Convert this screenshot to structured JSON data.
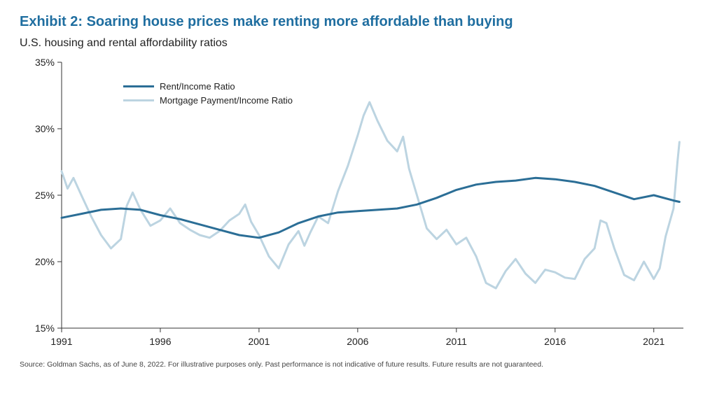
{
  "title": "Exhibit 2: Soaring house prices make renting more affordable than buying",
  "subtitle": "U.S. housing and rental affordability ratios",
  "source": "Source: Goldman Sachs, as of June 8, 2022. For illustrative purposes only. Past performance is not indicative of future results. Future results are not guaranteed.",
  "chart": {
    "type": "line",
    "background_color": "#ffffff",
    "title_color": "#1f6ea0",
    "title_fontsize": 20,
    "subtitle_fontsize": 16,
    "axis_color": "#333333",
    "axis_line_width": 1,
    "tick_fontsize": 14,
    "tick_color": "#222222",
    "grid": false,
    "xlim": [
      1991,
      2022.5
    ],
    "ylim": [
      15,
      35
    ],
    "ytick_step": 5,
    "yticks": [
      15,
      20,
      25,
      30,
      35
    ],
    "ytick_labels": [
      "15%",
      "20%",
      "25%",
      "30%",
      "35%"
    ],
    "xticks": [
      1991,
      1996,
      2001,
      2006,
      2011,
      2016,
      2021
    ],
    "xtick_labels": [
      "1991",
      "1996",
      "2001",
      "2006",
      "2011",
      "2016",
      "2021"
    ],
    "legend": {
      "position": "upper-left-inside",
      "fontsize": 13,
      "items": [
        {
          "label": "Rent/Income Ratio",
          "color": "#2b6e96",
          "line_width": 3
        },
        {
          "label": "Mortgage Payment/Income Ratio",
          "color": "#bcd4e1",
          "line_width": 3
        }
      ]
    },
    "series": [
      {
        "name": "Rent/Income Ratio",
        "color": "#2b6e96",
        "line_width": 3,
        "x": [
          1991,
          1992,
          1993,
          1994,
          1995,
          1996,
          1997,
          1998,
          1999,
          2000,
          2001,
          2002,
          2003,
          2004,
          2005,
          2006,
          2007,
          2008,
          2009,
          2010,
          2011,
          2012,
          2013,
          2014,
          2015,
          2016,
          2017,
          2018,
          2019,
          2020,
          2021,
          2022,
          2022.3
        ],
        "y": [
          23.3,
          23.6,
          23.9,
          24.0,
          23.9,
          23.5,
          23.2,
          22.8,
          22.4,
          22.0,
          21.8,
          22.2,
          22.9,
          23.4,
          23.7,
          23.8,
          23.9,
          24.0,
          24.3,
          24.8,
          25.4,
          25.8,
          26.0,
          26.1,
          26.3,
          26.2,
          26.0,
          25.7,
          25.2,
          24.7,
          25.0,
          24.6,
          24.5
        ]
      },
      {
        "name": "Mortgage Payment/Income Ratio",
        "color": "#bcd4e1",
        "line_width": 3,
        "x": [
          1991,
          1991.3,
          1991.6,
          1992,
          1992.5,
          1993,
          1993.5,
          1994,
          1994.3,
          1994.6,
          1995,
          1995.5,
          1996,
          1996.5,
          1997,
          1997.5,
          1998,
          1998.5,
          1999,
          1999.5,
          2000,
          2000.3,
          2000.6,
          2001,
          2001.5,
          2002,
          2002.5,
          2003,
          2003.3,
          2003.6,
          2004,
          2004.5,
          2005,
          2005.5,
          2006,
          2006.3,
          2006.6,
          2007,
          2007.5,
          2008,
          2008.3,
          2008.6,
          2009,
          2009.5,
          2010,
          2010.5,
          2011,
          2011.5,
          2012,
          2012.5,
          2013,
          2013.5,
          2014,
          2014.5,
          2015,
          2015.5,
          2016,
          2016.5,
          2017,
          2017.5,
          2018,
          2018.3,
          2018.6,
          2019,
          2019.5,
          2020,
          2020.5,
          2021,
          2021.3,
          2021.6,
          2022,
          2022.2,
          2022.3
        ],
        "y": [
          26.8,
          25.5,
          26.3,
          25.0,
          23.4,
          22.0,
          21.0,
          21.7,
          24.2,
          25.2,
          23.9,
          22.7,
          23.1,
          24.0,
          22.9,
          22.4,
          22.0,
          21.8,
          22.3,
          23.1,
          23.6,
          24.3,
          23.0,
          22.0,
          20.4,
          19.5,
          21.3,
          22.3,
          21.2,
          22.2,
          23.4,
          22.9,
          25.3,
          27.2,
          29.5,
          31.0,
          32.0,
          30.6,
          29.1,
          28.3,
          29.4,
          27.0,
          25.0,
          22.5,
          21.7,
          22.4,
          21.3,
          21.8,
          20.4,
          18.4,
          18.0,
          19.3,
          20.2,
          19.1,
          18.4,
          19.4,
          19.2,
          18.8,
          18.7,
          20.2,
          21.0,
          23.1,
          22.9,
          21.0,
          19.0,
          18.6,
          20.0,
          18.7,
          19.5,
          21.9,
          24.0,
          27.5,
          29.0
        ]
      }
    ]
  }
}
